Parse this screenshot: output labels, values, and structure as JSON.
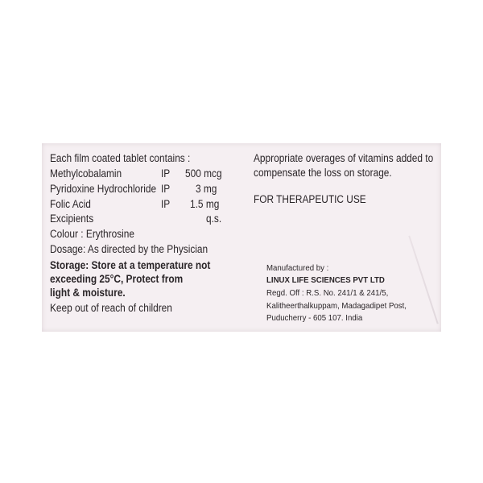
{
  "left": {
    "heading": "Each film coated tablet contains :",
    "ingredients": [
      {
        "name": "Methylcobalamin",
        "std": "IP",
        "qty": "500 mcg"
      },
      {
        "name": "Pyridoxine Hydrochloride",
        "std": "IP",
        "qty": "3 mg"
      },
      {
        "name": "Folic Acid",
        "std": "IP",
        "qty": "1.5 mg"
      },
      {
        "name": "Excipients",
        "std": "",
        "qty": "q.s."
      }
    ],
    "colour": "Colour : Erythrosine",
    "dosage": "Dosage: As directed by the Physician",
    "storage": [
      "Storage: Store at a temperature not",
      "exceeding 25°C, Protect from",
      "light & moisture."
    ],
    "warning": "Keep out of reach of children"
  },
  "right": {
    "overages": [
      "Appropriate overages of vitamins added to",
      "compensate the loss on storage."
    ],
    "use": "FOR THERAPEUTIC USE",
    "manufacturer": {
      "label": "Manufactured by :",
      "name": "LINUX LIFE SCIENCES PVT LTD",
      "address": [
        "Regd. Off : R.S. No. 241/1 & 241/5,",
        "Kalitheerthalkuppam, Madagadipet Post,",
        "Puducherry - 605 107. India"
      ]
    }
  },
  "colors": {
    "card": "#f5eff2",
    "text": "#2a2528"
  }
}
